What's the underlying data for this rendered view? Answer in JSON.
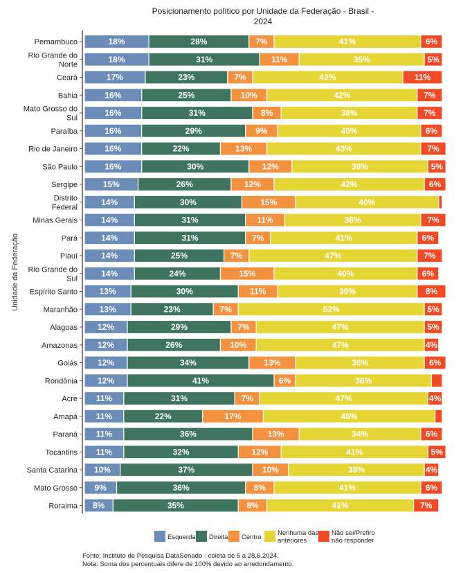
{
  "chart_data": {
    "type": "bar",
    "orientation": "horizontal",
    "stacked": true,
    "title": "Posicionamento político por Unidade da Federação - Brasil - 2024",
    "title_lines": [
      "Posicionamento político por Unidade da Federação - Brasil -",
      "2024"
    ],
    "ylabel": "Unidade da Federação",
    "xlabel": "",
    "xlim": [
      0,
      100
    ],
    "grid": false,
    "legend_position": "bottom",
    "value_suffix": "%",
    "categories": [
      [
        "Pernambuco"
      ],
      [
        "Rio Grande do",
        "Norte"
      ],
      [
        "Ceará"
      ],
      [
        "Bahia"
      ],
      [
        "Mato Grosso do",
        "Sul"
      ],
      [
        "Paraíba"
      ],
      [
        "Rio de Janeiro"
      ],
      [
        "São Paulo"
      ],
      [
        "Sergipe"
      ],
      [
        "Distrito",
        "Federal"
      ],
      [
        "Minas Gerais"
      ],
      [
        "Pará"
      ],
      [
        "Piauí"
      ],
      [
        "Rio Grande do",
        "Sul"
      ],
      [
        "Espírito Santo"
      ],
      [
        "Maranhão"
      ],
      [
        "Alagoas"
      ],
      [
        "Amazonas"
      ],
      [
        "Goiás"
      ],
      [
        "Rondônia"
      ],
      [
        "Acre"
      ],
      [
        "Amapá"
      ],
      [
        "Paraná"
      ],
      [
        "Tocantins"
      ],
      [
        "Santa Catarina"
      ],
      [
        "Mato Grosso"
      ],
      [
        "Roraima"
      ]
    ],
    "series": [
      {
        "name": "Esquerda",
        "color": "#6a8cb7",
        "label_color": "#ffffff",
        "values": [
          18,
          18,
          17,
          16,
          16,
          16,
          16,
          16,
          15,
          14,
          14,
          14,
          14,
          14,
          13,
          13,
          12,
          12,
          12,
          12,
          11,
          11,
          11,
          11,
          10,
          9,
          8
        ]
      },
      {
        "name": "Direita",
        "color": "#3e7460",
        "label_color": "#ffffff",
        "values": [
          28,
          31,
          23,
          25,
          31,
          29,
          22,
          30,
          26,
          30,
          31,
          31,
          25,
          24,
          30,
          23,
          29,
          26,
          34,
          41,
          31,
          22,
          36,
          32,
          37,
          36,
          35
        ]
      },
      {
        "name": "Centro",
        "color": "#f3913f",
        "label_color": "#ffffff",
        "values": [
          7,
          11,
          7,
          10,
          8,
          9,
          13,
          12,
          12,
          15,
          11,
          7,
          7,
          15,
          11,
          7,
          7,
          10,
          13,
          6,
          7,
          17,
          13,
          12,
          10,
          8,
          8
        ]
      },
      {
        "name": "Nenhuma das anteriores",
        "name_lines": [
          "Nenhuma das",
          "anteriores"
        ],
        "color": "#e6d635",
        "label_color": "#ffffff",
        "values": [
          41,
          35,
          42,
          42,
          38,
          40,
          43,
          38,
          42,
          40,
          38,
          41,
          47,
          40,
          39,
          52,
          47,
          47,
          36,
          38,
          47,
          48,
          34,
          41,
          38,
          41,
          41
        ]
      },
      {
        "name": "Não sei/Prefiro não responder",
        "name_lines": [
          "Não sei/Prefiro",
          "não responder"
        ],
        "color": "#f24a25",
        "label_color": "#ffffff",
        "values": [
          6,
          5,
          11,
          7,
          7,
          6,
          7,
          5,
          6,
          1,
          7,
          6,
          7,
          6,
          8,
          5,
          5,
          4,
          6,
          3,
          4,
          2,
          6,
          5,
          4,
          6,
          7
        ],
        "value_labels": [
          "6%",
          "5%",
          "11%",
          "7%",
          "7%",
          "6%",
          "7%",
          "5%",
          "6%",
          "",
          "7%",
          "6%",
          "7%",
          "6%",
          "8%",
          "5%",
          "5%",
          "4%",
          "6%",
          "",
          "4%",
          "",
          "6%",
          "5%",
          "4%",
          "6%",
          "7%"
        ]
      }
    ]
  },
  "footer": {
    "source": "Fonte: Instituto de Pesquisa DataSenado - coleta de 5 a 28.6.2024.",
    "note": "Nota: Soma dos percentuais difere de 100% devido ao arredondamento."
  }
}
